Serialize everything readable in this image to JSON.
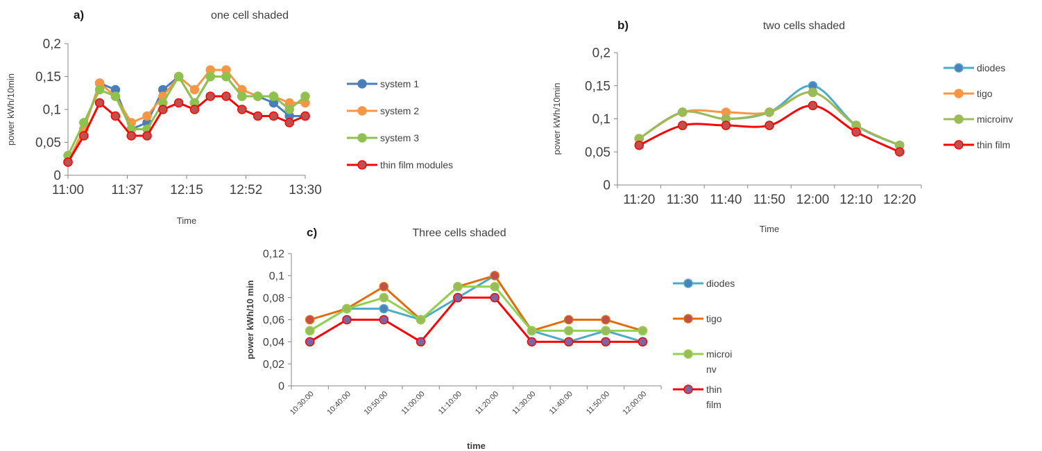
{
  "chart_data": [
    {
      "type": "line",
      "panel": "a)",
      "title": "one cell shaded",
      "xlabel": "Time",
      "ylabel": "power kWh/10min",
      "ylim": [
        0,
        0.2
      ],
      "yticks": [
        "0",
        "0,05",
        "0,1",
        "0,15",
        "0,2"
      ],
      "xticks": [
        "11:00",
        "11:37",
        "12:15",
        "12:52",
        "13:30"
      ],
      "legend_position": "right",
      "series": [
        {
          "name": "system 1",
          "color": "#4a7ebb",
          "marker_fill": "#4a7ebb",
          "values": [
            0.02,
            0.07,
            0.14,
            0.13,
            0.07,
            0.08,
            0.13,
            0.15,
            0.11,
            0.15,
            0.15,
            0.12,
            0.12,
            0.11,
            0.09,
            0.09
          ]
        },
        {
          "name": "system 2",
          "color": "#f79646",
          "marker_fill": "#f79646",
          "values": [
            0.02,
            0.07,
            0.14,
            0.12,
            0.08,
            0.09,
            0.12,
            0.15,
            0.13,
            0.16,
            0.16,
            0.13,
            0.12,
            0.12,
            0.11,
            0.11
          ]
        },
        {
          "name": "system 3",
          "color": "#8fc14e",
          "marker_fill": "#8fc14e",
          "values": [
            0.03,
            0.08,
            0.13,
            0.12,
            0.07,
            0.07,
            0.11,
            0.15,
            0.11,
            0.15,
            0.15,
            0.12,
            0.12,
            0.12,
            0.1,
            0.12
          ]
        },
        {
          "name": "thin film modules",
          "color": "#ff0000",
          "marker_fill": "#c0504d",
          "values": [
            0.02,
            0.06,
            0.11,
            0.09,
            0.06,
            0.06,
            0.1,
            0.11,
            0.1,
            0.12,
            0.12,
            0.1,
            0.09,
            0.09,
            0.08,
            0.09
          ]
        }
      ]
    },
    {
      "type": "line",
      "panel": "b)",
      "title": "two cells shaded",
      "xlabel": "Time",
      "ylabel": "power kWh/10min",
      "ylim": [
        0,
        0.2
      ],
      "yticks": [
        "0",
        "0,05",
        "0,1",
        "0,15",
        "0,2"
      ],
      "categories": [
        "11:20",
        "11:30",
        "11:40",
        "11:50",
        "12:00",
        "12:10",
        "12:20"
      ],
      "legend_position": "right",
      "series": [
        {
          "name": "diodes",
          "color": "#4bacc6",
          "marker_fill": "#4f81bd",
          "values": [
            0.07,
            0.11,
            0.1,
            0.11,
            0.15,
            0.09,
            0.06
          ]
        },
        {
          "name": "tigo",
          "color": "#f79646",
          "marker_fill": "#f79646",
          "values": [
            0.07,
            0.11,
            0.11,
            0.11,
            0.14,
            0.09,
            0.06
          ]
        },
        {
          "name": "microinv",
          "color": "#9bbb59",
          "marker_fill": "#9bbb59",
          "values": [
            0.07,
            0.11,
            0.1,
            0.11,
            0.14,
            0.09,
            0.06
          ]
        },
        {
          "name": "thin film",
          "color": "#ff0000",
          "marker_fill": "#c0504d",
          "values": [
            0.06,
            0.09,
            0.09,
            0.09,
            0.12,
            0.08,
            0.05
          ]
        }
      ]
    },
    {
      "type": "line",
      "panel": "c)",
      "title": "Three cells shaded",
      "xlabel": "time",
      "ylabel": "power kWh/10 min",
      "ylim": [
        0,
        0.12
      ],
      "yticks": [
        "0",
        "0,02",
        "0,04",
        "0,06",
        "0,08",
        "0,1",
        "0,12"
      ],
      "categories": [
        "10:30:00",
        "10:40:00",
        "10:50:00",
        "11:00:00",
        "11:10:00",
        "11:20:00",
        "11:30:00",
        "11:40:00",
        "11:50:00",
        "12:00:00"
      ],
      "legend_position": "right",
      "series": [
        {
          "name": "diodes",
          "legend_lines": [
            "diodes"
          ],
          "color": "#4bacc6",
          "marker_fill": "#4f81bd",
          "values": [
            0.05,
            0.07,
            0.07,
            0.06,
            0.08,
            0.1,
            0.05,
            0.04,
            0.05,
            0.04
          ]
        },
        {
          "name": "tigo",
          "legend_lines": [
            "tigo"
          ],
          "color": "#e36c09",
          "marker_fill": "#c0504d",
          "values": [
            0.06,
            0.07,
            0.09,
            0.06,
            0.09,
            0.1,
            0.05,
            0.06,
            0.06,
            0.05
          ]
        },
        {
          "name": "microinv",
          "legend_lines": [
            "microi",
            "nv"
          ],
          "color": "#92d050",
          "marker_fill": "#9bbb59",
          "values": [
            0.05,
            0.07,
            0.08,
            0.06,
            0.09,
            0.09,
            0.05,
            0.05,
            0.05,
            0.05
          ]
        },
        {
          "name": "thin film",
          "legend_lines": [
            "thin",
            "film"
          ],
          "color": "#ff0000",
          "marker_fill": "#8064a2",
          "values": [
            0.04,
            0.06,
            0.06,
            0.04,
            0.08,
            0.08,
            0.04,
            0.04,
            0.04,
            0.04
          ]
        }
      ]
    }
  ]
}
